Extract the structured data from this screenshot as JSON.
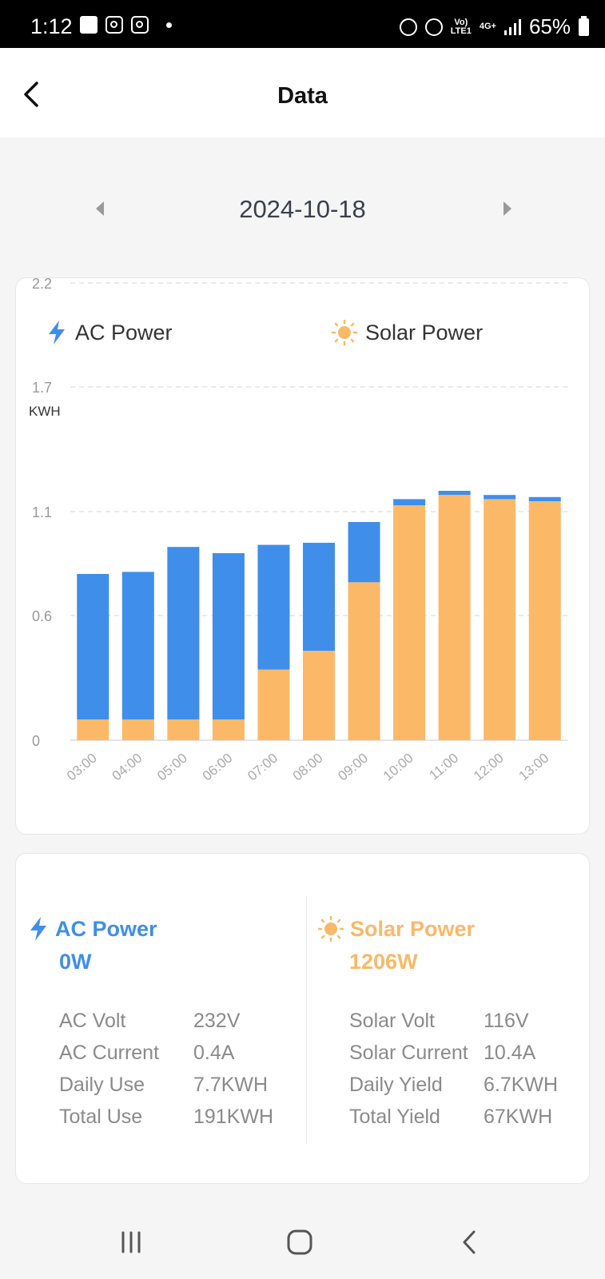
{
  "status_bar": {
    "time": "1:12",
    "battery": "65%",
    "network_small_1": "Vo)",
    "network_small_2": "LTE1",
    "network_small_3": "4G+"
  },
  "header": {
    "title": "Data"
  },
  "date": {
    "value": "2024-10-18"
  },
  "legend": {
    "ac_label": "AC Power",
    "solar_label": "Solar Power"
  },
  "colors": {
    "ac": "#3f8ee9",
    "solar": "#fbb968"
  },
  "chart_data": {
    "type": "bar",
    "stacked": true,
    "ylabel": "KWH",
    "yticks": [
      "0",
      "0.6",
      "1.1",
      "1.7",
      "2.2",
      "2.8"
    ],
    "ylim": [
      0,
      2.8
    ],
    "grid": true,
    "legend_position": "top",
    "categories": [
      "03:00",
      "04:00",
      "05:00",
      "06:00",
      "07:00",
      "08:00",
      "09:00",
      "10:00",
      "11:00",
      "12:00",
      "13:00"
    ],
    "series": [
      {
        "name": "Solar Power",
        "values": [
          0.1,
          0.1,
          0.1,
          0.1,
          0.34,
          0.43,
          0.76,
          1.13,
          1.18,
          1.16,
          1.15
        ]
      },
      {
        "name": "AC Power",
        "values": [
          0.7,
          0.71,
          0.83,
          0.8,
          0.6,
          0.52,
          0.29,
          0.03,
          0.02,
          0.02,
          0.02
        ]
      }
    ]
  },
  "stats": {
    "ac": {
      "title": "AC Power",
      "value": "0W",
      "rows": [
        {
          "label": "AC  Volt",
          "value": "232V"
        },
        {
          "label": "AC Current",
          "value": "0.4A"
        },
        {
          "label": "Daily Use",
          "value": "7.7KWH"
        },
        {
          "label": "Total Use",
          "value": "191KWH"
        }
      ]
    },
    "solar": {
      "title": "Solar Power",
      "value": "1206W",
      "rows": [
        {
          "label": "Solar Volt",
          "value": "116V"
        },
        {
          "label": "Solar Current",
          "value": "10.4A"
        },
        {
          "label": "Daily Yield",
          "value": "6.7KWH"
        },
        {
          "label": "Total Yield",
          "value": "67KWH"
        }
      ]
    }
  }
}
